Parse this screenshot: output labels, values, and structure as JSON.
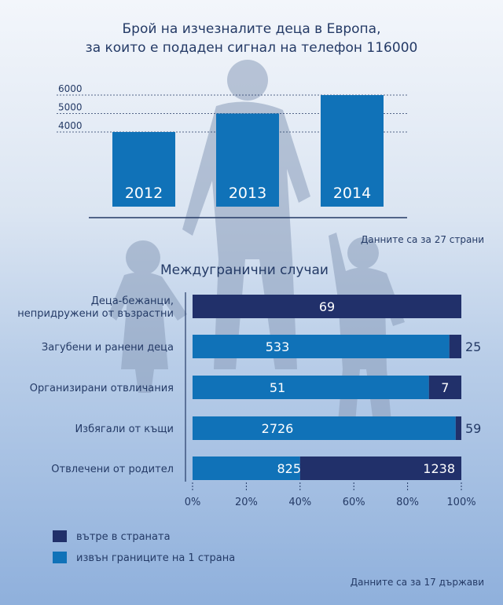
{
  "colors": {
    "dark": "#21306a",
    "light": "#1072b8",
    "text": "#243a66",
    "silhouette": "#8a9dba"
  },
  "chart_data": [
    {
      "type": "bar",
      "title": "Брой на изчезналите деца в Европа,\nза които е подаден сигнал на телефон 116000",
      "categories": [
        "2012",
        "2013",
        "2014"
      ],
      "values": [
        4000,
        5000,
        6000
      ],
      "y_ticks": [
        "6000",
        "5000",
        "4000"
      ],
      "grid": true,
      "note": "Данните са за 27 страни"
    },
    {
      "type": "bar",
      "orientation": "horizontal",
      "stacked": "percent",
      "title": "Междугранични случаи",
      "categories": [
        "Деца-бежанци,\nнепридружени от възрастни",
        "Загубени и ранени деца",
        "Организирани отвличания",
        "Избягали от къщи",
        "Отвлечени от родител"
      ],
      "series": [
        {
          "name": "извън границите на 1 страна",
          "color": "#1072b8",
          "values": [
            0,
            533,
            51,
            2726,
            825
          ]
        },
        {
          "name": "вътре в страната",
          "color": "#21306a",
          "values": [
            69,
            25,
            7,
            59,
            1238
          ]
        }
      ],
      "x_ticks": [
        "0%",
        "20%",
        "40%",
        "60%",
        "80%",
        "100%"
      ],
      "note": "Данните са за 17 държави"
    }
  ]
}
